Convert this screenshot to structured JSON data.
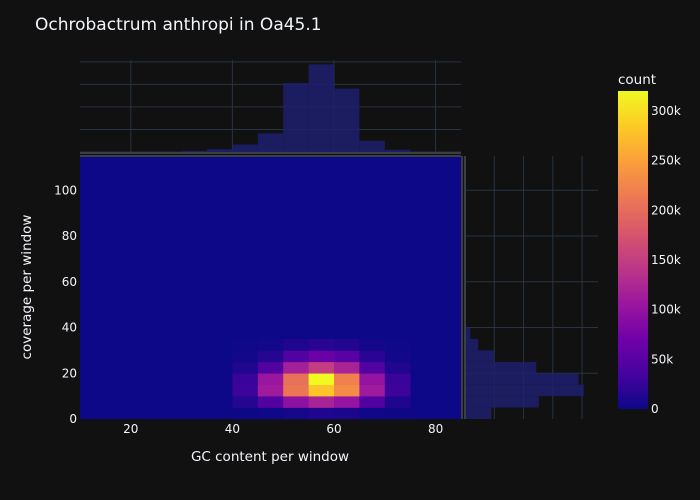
{
  "chart_data": {
    "type": "heatmap",
    "title": "Ochrobactrum anthropi in Oa45.1",
    "xlabel": "GC content per window",
    "ylabel": "coverage per window",
    "xlim": [
      10,
      85
    ],
    "ylim": [
      0,
      115
    ],
    "x_ticks": [
      20,
      40,
      60,
      80
    ],
    "y_ticks": [
      0,
      20,
      40,
      60,
      80,
      100
    ],
    "colorbar": {
      "title": "count",
      "range": [
        0,
        320000
      ],
      "ticks": [
        {
          "value": 0,
          "label": "0"
        },
        {
          "value": 50000,
          "label": "50k"
        },
        {
          "value": 100000,
          "label": "100k"
        },
        {
          "value": 150000,
          "label": "150k"
        },
        {
          "value": 200000,
          "label": "200k"
        },
        {
          "value": 250000,
          "label": "250k"
        },
        {
          "value": 300000,
          "label": "300k"
        }
      ]
    },
    "colorscale": [
      "#0d0887",
      "#46039f",
      "#7201a8",
      "#9c179e",
      "#bd3786",
      "#d8576b",
      "#ed7953",
      "#fb9f3a",
      "#fdca26",
      "#f0f921"
    ],
    "bins": {
      "x_edges": [
        40,
        45,
        50,
        55,
        60,
        65,
        70,
        75
      ],
      "y_edges": [
        0,
        5,
        10,
        15,
        20,
        25,
        30,
        35
      ],
      "counts": [
        [
          500,
          1500,
          6000,
          12000,
          8000,
          2500,
          500
        ],
        [
          15000,
          45000,
          95000,
          120000,
          100000,
          45000,
          12000
        ],
        [
          30000,
          110000,
          210000,
          280000,
          230000,
          110000,
          30000
        ],
        [
          28000,
          105000,
          205000,
          320000,
          220000,
          100000,
          28000
        ],
        [
          12000,
          45000,
          115000,
          150000,
          120000,
          45000,
          12000
        ],
        [
          4000,
          15000,
          45000,
          65000,
          50000,
          18000,
          4000
        ],
        [
          1000,
          4000,
          12000,
          18000,
          14000,
          5000,
          1000
        ]
      ]
    },
    "marginal_x": {
      "bin_edges": [
        20,
        25,
        30,
        35,
        40,
        45,
        50,
        55,
        60,
        65,
        70,
        75,
        80
      ],
      "counts": [
        5000,
        20000,
        60000,
        150000,
        400000,
        1000000,
        3700000,
        4700000,
        3400000,
        600000,
        120000,
        20000
      ]
    },
    "marginal_y": {
      "bin_edges": [
        0,
        5,
        10,
        15,
        20,
        25,
        30,
        35,
        40
      ],
      "counts": [
        1000000,
        2800000,
        4500000,
        4300000,
        2700000,
        1100000,
        500000,
        200000
      ]
    }
  }
}
